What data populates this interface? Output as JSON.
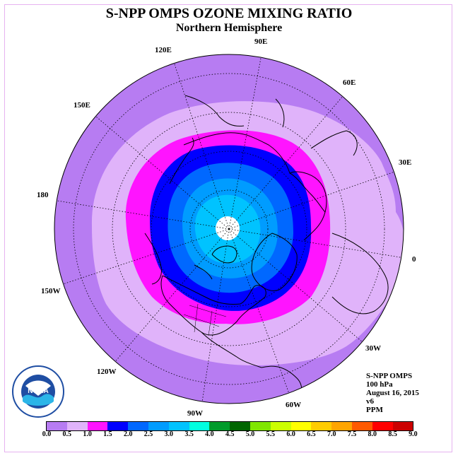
{
  "title": "S-NPP OMPS OZONE MIXING RATIO",
  "subtitle": "Northern Hemisphere",
  "info": {
    "line1": "S-NPP OMPS",
    "line2": "100 hPa",
    "line3": "August 16, 2015",
    "line4": "v6",
    "line5": "PPM"
  },
  "longitude_labels": [
    {
      "text": "90E"
    },
    {
      "text": "60E"
    },
    {
      "text": "30E"
    },
    {
      "text": "0"
    },
    {
      "text": "30W"
    },
    {
      "text": "60W"
    },
    {
      "text": "90W"
    },
    {
      "text": "120W"
    },
    {
      "text": "150W"
    },
    {
      "text": "180"
    },
    {
      "text": "150E"
    },
    {
      "text": "120E"
    }
  ],
  "colorbar": {
    "ticks": [
      "0.0",
      "0.5",
      "1.0",
      "1.5",
      "2.0",
      "2.5",
      "3.0",
      "3.5",
      "4.0",
      "4.5",
      "5.0",
      "5.5",
      "6.0",
      "6.5",
      "7.0",
      "7.5",
      "8.0",
      "8.5",
      "9.0"
    ],
    "colors": [
      "#b77cf2",
      "#e0b3fa",
      "#ff14ff",
      "#0000ff",
      "#0068ff",
      "#009cff",
      "#00c3ff",
      "#00ffe0",
      "#009b2b",
      "#006600",
      "#80e600",
      "#ccff00",
      "#ffff00",
      "#ffcc00",
      "#ffa500",
      "#ff5a00",
      "#ff0000",
      "#cc0000",
      "#8b5a3c"
    ]
  },
  "levels": {
    "outer": "#b77cf2",
    "band_0_5": "#e0b3fa",
    "band_1_0": "#ff14ff",
    "band_1_5": "#0000ff",
    "band_2_0": "#0068ff",
    "band_2_5": "#009cff",
    "band_3_0": "#00c3ff",
    "polar_gap": "#ffffff"
  },
  "logo": {
    "text": "NOAA"
  }
}
